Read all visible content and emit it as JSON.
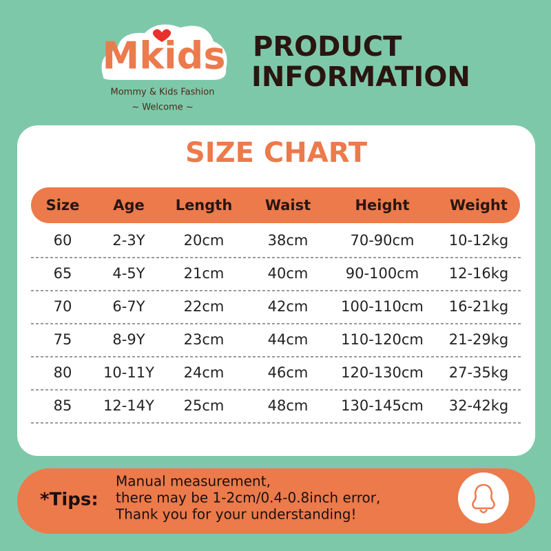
{
  "logo": {
    "brand": "Mkids",
    "tagline": "Mommy & Kids Fashion",
    "welcome": "~ Welcome ~"
  },
  "header": {
    "title_line1": "PRODUCT",
    "title_line2": "INFORMATION"
  },
  "table": {
    "title": "SIZE CHART",
    "columns": [
      "Size",
      "Age",
      "Length",
      "Waist",
      "Height",
      "Weight"
    ],
    "rows": [
      [
        "60",
        "2-3Y",
        "20cm",
        "38cm",
        "70-90cm",
        "10-12kg"
      ],
      [
        "65",
        "4-5Y",
        "21cm",
        "40cm",
        "90-100cm",
        "12-16kg"
      ],
      [
        "70",
        "6-7Y",
        "22cm",
        "42cm",
        "100-110cm",
        "16-21kg"
      ],
      [
        "75",
        "8-9Y",
        "23cm",
        "44cm",
        "110-120cm",
        "21-29kg"
      ],
      [
        "80",
        "10-11Y",
        "24cm",
        "46cm",
        "120-130cm",
        "27-35kg"
      ],
      [
        "85",
        "12-14Y",
        "25cm",
        "48cm",
        "130-145cm",
        "32-42kg"
      ]
    ]
  },
  "tips": {
    "label": "*Tips:",
    "lines": [
      "Manual measurement,",
      "there may be 1-2cm/0.4-0.8inch error,",
      "Thank you for your understanding!"
    ]
  }
}
